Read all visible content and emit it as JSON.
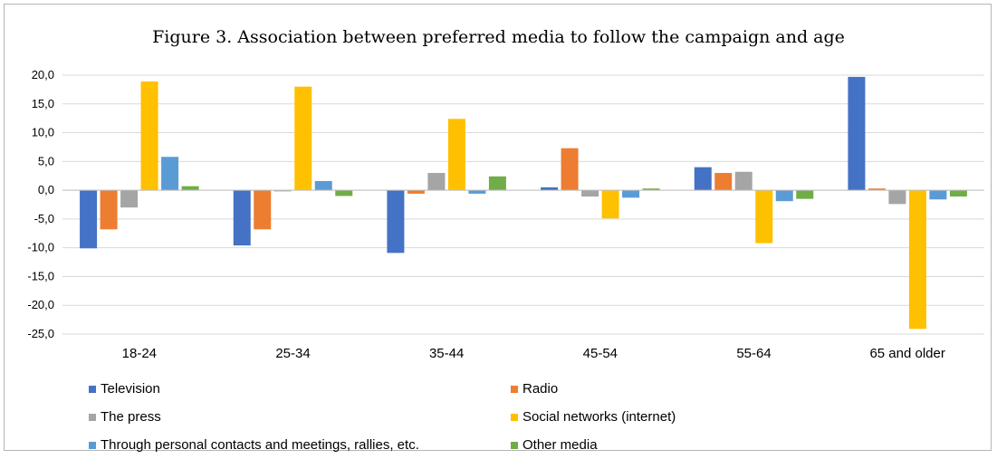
{
  "chart_data": {
    "type": "bar",
    "title": "Figure 3. Association between preferred media to follow the campaign and age",
    "xlabel": "",
    "ylabel": "",
    "ylim": [
      -25,
      20
    ],
    "yticks": [
      20,
      15,
      10,
      5,
      0,
      -5,
      -10,
      -15,
      -20,
      -25
    ],
    "ytick_labels": [
      "20,0",
      "15,0",
      "10,0",
      "5,0",
      "0,0",
      "-5,0",
      "-10,0",
      "-15,0",
      "-20,0",
      "-25,0"
    ],
    "grid": true,
    "legend_position": "bottom",
    "categories": [
      "18-24",
      "25-34",
      "35-44",
      "45-54",
      "55-64",
      "65 and older"
    ],
    "series": [
      {
        "name": "Television",
        "color": "#4472c4",
        "values": [
          -10.1,
          -9.6,
          -10.9,
          0.5,
          4.0,
          19.7
        ]
      },
      {
        "name": "Radio",
        "color": "#ed7d31",
        "values": [
          -6.8,
          -6.8,
          -0.6,
          7.3,
          3.0,
          0.3
        ]
      },
      {
        "name": "The press",
        "color": "#a5a5a5",
        "values": [
          -3.0,
          -0.2,
          3.0,
          -1.1,
          3.2,
          -2.4
        ]
      },
      {
        "name": "Social networks (internet)",
        "color": "#ffc000",
        "values": [
          18.9,
          18.0,
          12.4,
          -4.9,
          -9.2,
          -24.1
        ]
      },
      {
        "name": "Through personal contacts and meetings, rallies, etc.",
        "color": "#5b9bd5",
        "values": [
          5.8,
          1.6,
          -0.6,
          -1.3,
          -1.9,
          -1.6
        ]
      },
      {
        "name": "Other media",
        "color": "#70ad47",
        "values": [
          0.7,
          -1.0,
          2.4,
          0.3,
          -1.5,
          -1.1
        ]
      }
    ]
  }
}
